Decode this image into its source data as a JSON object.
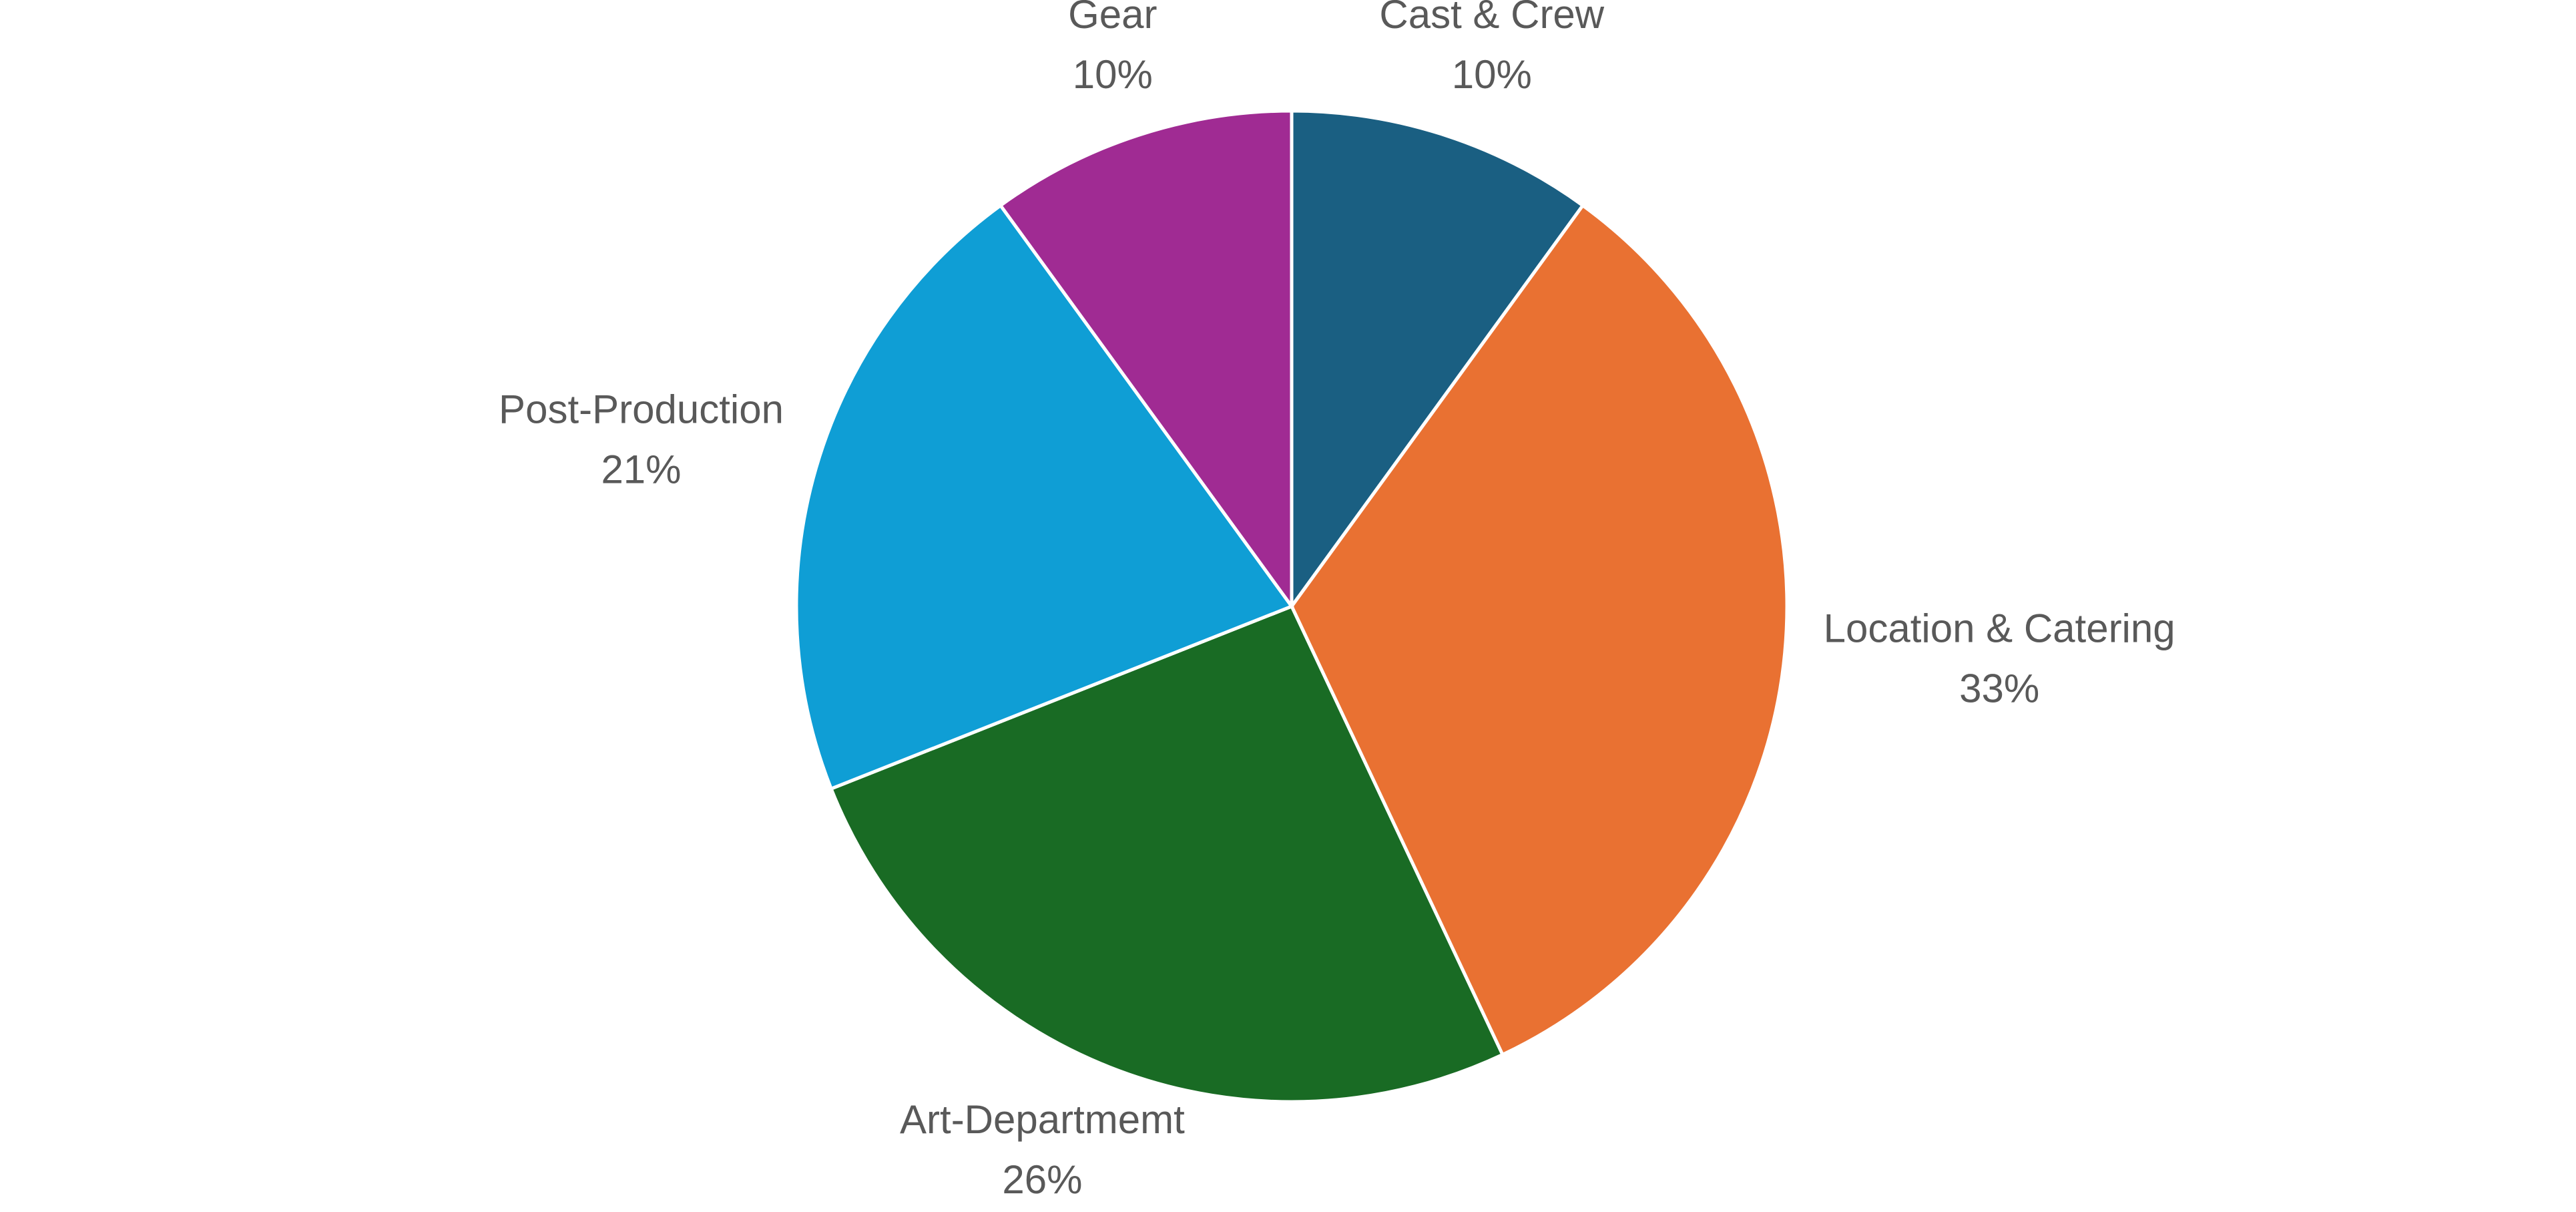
{
  "chart_data": {
    "type": "pie",
    "categories": [
      "Cast & Crew",
      "Location & Catering",
      "Art-Departmemt",
      "Post-Production",
      "Gear"
    ],
    "values": [
      10,
      33,
      26,
      21,
      10
    ],
    "value_labels": [
      "10%",
      "33%",
      "26%",
      "21%",
      "10%"
    ],
    "colors": [
      "#1a5f82",
      "#e97132",
      "#196b24",
      "#0f9ed5",
      "#a02b93"
    ]
  }
}
